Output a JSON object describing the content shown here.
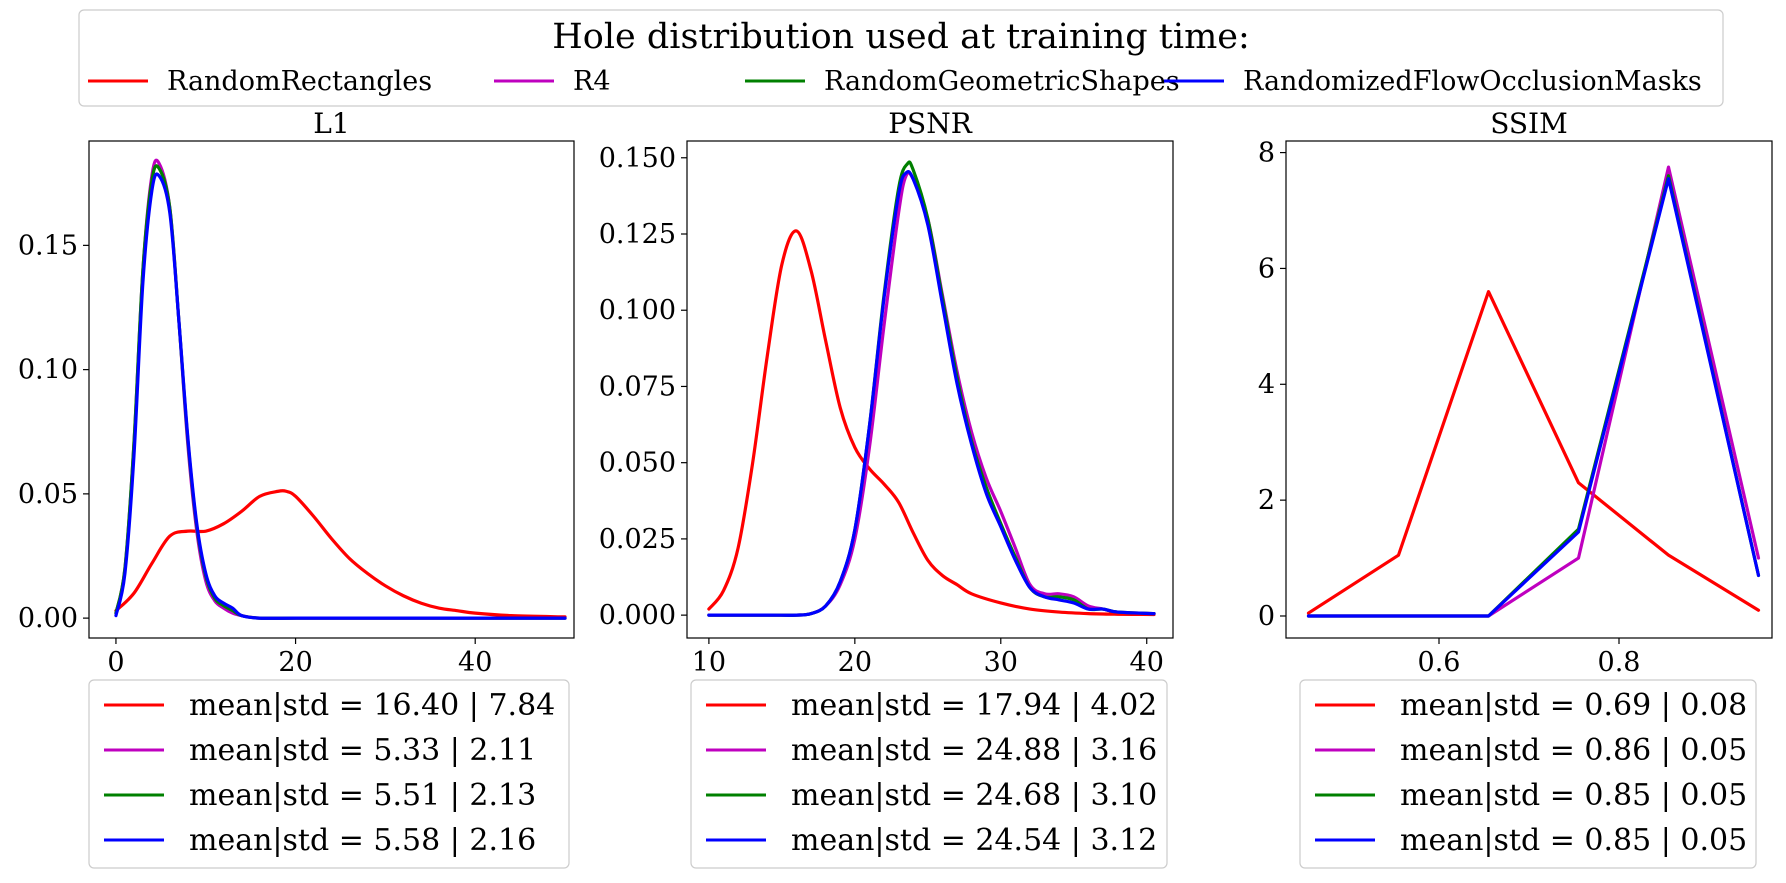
{
  "legend": {
    "title": "Hole distribution used at training time:",
    "entries": [
      {
        "label": "RandomRectangles",
        "color": "#ff0000"
      },
      {
        "label": "R4",
        "color": "#bf00bf"
      },
      {
        "label": "RandomGeometricShapes",
        "color": "#008000"
      },
      {
        "label": "RandomizedFlowOcclusionMasks",
        "color": "#0000ff"
      }
    ]
  },
  "chart_data": [
    {
      "type": "line",
      "title": "L1",
      "xlim": [
        -3,
        51
      ],
      "ylim": [
        -0.008,
        0.192
      ],
      "xticks": [
        0,
        20,
        40
      ],
      "xtick_labels": [
        "0",
        "20",
        "40"
      ],
      "yticks": [
        0,
        0.05,
        0.1,
        0.15
      ],
      "ytick_labels": [
        "0.00",
        "0.05",
        "0.10",
        "0.15"
      ],
      "series": [
        {
          "name": "RandomRectangles",
          "color": "#ff0000",
          "x": [
            0,
            2,
            4,
            6,
            8,
            10,
            12,
            14,
            16,
            18,
            19,
            20,
            22,
            24,
            26,
            28,
            30,
            32,
            34,
            36,
            38,
            40,
            44,
            50
          ],
          "y": [
            0.003,
            0.01,
            0.022,
            0.033,
            0.035,
            0.035,
            0.038,
            0.043,
            0.049,
            0.051,
            0.051,
            0.049,
            0.041,
            0.032,
            0.024,
            0.018,
            0.013,
            0.009,
            0.006,
            0.004,
            0.003,
            0.002,
            0.001,
            0.0005
          ]
        },
        {
          "name": "R4",
          "color": "#bf00bf",
          "x": [
            0,
            1,
            2,
            3,
            4,
            4.8,
            6,
            7,
            8,
            9,
            10,
            11,
            12,
            13,
            14,
            16,
            20,
            30,
            40,
            50
          ],
          "y": [
            0.002,
            0.02,
            0.07,
            0.14,
            0.178,
            0.183,
            0.165,
            0.12,
            0.07,
            0.035,
            0.015,
            0.007,
            0.004,
            0.002,
            0.001,
            0,
            0,
            0,
            0,
            0
          ]
        },
        {
          "name": "RandomGeometricShapes",
          "color": "#008000",
          "x": [
            0,
            1,
            2,
            3,
            4,
            4.8,
            6,
            7,
            8,
            9,
            10,
            11,
            12,
            13,
            14,
            16,
            20,
            30,
            40,
            50
          ],
          "y": [
            0.002,
            0.02,
            0.07,
            0.14,
            0.176,
            0.181,
            0.165,
            0.12,
            0.072,
            0.037,
            0.017,
            0.008,
            0.005,
            0.003,
            0.001,
            0,
            0,
            0,
            0,
            0
          ]
        },
        {
          "name": "RandomizedFlowOcclusionMasks",
          "color": "#0000ff",
          "x": [
            0,
            1,
            2,
            3,
            4,
            4.8,
            6,
            7,
            8,
            9,
            10,
            11,
            12,
            13,
            14,
            16,
            20,
            30,
            40,
            50
          ],
          "y": [
            0.001,
            0.018,
            0.065,
            0.135,
            0.172,
            0.178,
            0.163,
            0.12,
            0.073,
            0.038,
            0.018,
            0.009,
            0.006,
            0.004,
            0.001,
            0,
            0,
            0,
            0,
            0
          ]
        }
      ],
      "legend_stats": [
        "mean|std = 16.40 | 7.84",
        "mean|std = 5.33 | 2.11",
        "mean|std = 5.51 | 2.13",
        "mean|std = 5.58 | 2.16"
      ]
    },
    {
      "type": "line",
      "title": "PSNR",
      "xlim": [
        8.5,
        41.8
      ],
      "ylim": [
        -0.0075,
        0.1555
      ],
      "xticks": [
        10,
        20,
        30,
        40
      ],
      "xtick_labels": [
        "10",
        "20",
        "30",
        "40"
      ],
      "yticks": [
        0,
        0.025,
        0.05,
        0.075,
        0.1,
        0.125,
        0.15
      ],
      "ytick_labels": [
        "0.000",
        "0.025",
        "0.050",
        "0.075",
        "0.100",
        "0.125",
        "0.150"
      ],
      "series": [
        {
          "name": "RandomRectangles",
          "color": "#ff0000",
          "x": [
            10,
            11,
            12,
            13,
            14,
            15,
            16,
            17,
            18,
            19,
            20,
            21,
            22,
            23,
            24,
            25,
            26,
            27,
            28,
            30,
            32,
            34,
            36,
            38,
            40.5
          ],
          "y": [
            0.002,
            0.008,
            0.022,
            0.05,
            0.085,
            0.115,
            0.126,
            0.113,
            0.09,
            0.068,
            0.055,
            0.048,
            0.043,
            0.037,
            0.027,
            0.018,
            0.013,
            0.01,
            0.007,
            0.004,
            0.002,
            0.001,
            0.0005,
            0.0003,
            0.0002
          ]
        },
        {
          "name": "R4",
          "color": "#bf00bf",
          "x": [
            10,
            14,
            16,
            17,
            18,
            19,
            20,
            21,
            22,
            23,
            23.5,
            24,
            25,
            26,
            27,
            28,
            29,
            30,
            31,
            32,
            33,
            34,
            35,
            36,
            37,
            38,
            40.5
          ],
          "y": [
            0,
            0,
            0,
            0.0005,
            0.003,
            0.01,
            0.025,
            0.055,
            0.095,
            0.132,
            0.144,
            0.143,
            0.13,
            0.105,
            0.08,
            0.06,
            0.045,
            0.034,
            0.022,
            0.01,
            0.007,
            0.007,
            0.006,
            0.003,
            0.002,
            0.001,
            0.0005
          ]
        },
        {
          "name": "RandomGeometricShapes",
          "color": "#008000",
          "x": [
            10,
            14,
            16,
            17,
            18,
            19,
            20,
            21,
            22,
            23,
            23.6,
            24,
            25,
            26,
            27,
            28,
            29,
            30,
            31,
            32,
            33,
            34,
            35,
            36,
            37,
            38,
            40.5
          ],
          "y": [
            0,
            0,
            0,
            0.0005,
            0.003,
            0.011,
            0.028,
            0.062,
            0.105,
            0.14,
            0.148,
            0.146,
            0.13,
            0.104,
            0.078,
            0.057,
            0.042,
            0.03,
            0.019,
            0.009,
            0.006,
            0.006,
            0.005,
            0.002,
            0.002,
            0.001,
            0.0005
          ]
        },
        {
          "name": "RandomizedFlowOcclusionMasks",
          "color": "#0000ff",
          "x": [
            10,
            14,
            16,
            17,
            18,
            19,
            20,
            21,
            22,
            23,
            23.5,
            24,
            25,
            26,
            27,
            28,
            29,
            30,
            31,
            32,
            33,
            34,
            35,
            36,
            37,
            38,
            40.5
          ],
          "y": [
            0,
            0,
            0,
            0.0005,
            0.003,
            0.011,
            0.028,
            0.062,
            0.104,
            0.138,
            0.145,
            0.143,
            0.128,
            0.102,
            0.076,
            0.056,
            0.04,
            0.029,
            0.018,
            0.009,
            0.006,
            0.005,
            0.004,
            0.002,
            0.002,
            0.001,
            0.0005
          ]
        }
      ],
      "legend_stats": [
        "mean|std = 17.94 | 4.02",
        "mean|std = 24.88 | 3.16",
        "mean|std = 24.68 | 3.10",
        "mean|std = 24.54 | 3.12"
      ]
    },
    {
      "type": "line",
      "title": "SSIM",
      "xlim": [
        0.43,
        0.97
      ],
      "ylim": [
        -0.38,
        8.2
      ],
      "xticks": [
        0.6,
        0.8
      ],
      "xtick_labels": [
        "0.6",
        "0.8"
      ],
      "yticks": [
        0,
        2,
        4,
        6,
        8
      ],
      "ytick_labels": [
        "0",
        "2",
        "4",
        "6",
        "8"
      ],
      "series": [
        {
          "name": "RandomRectangles",
          "color": "#ff0000",
          "x": [
            0.455,
            0.555,
            0.655,
            0.755,
            0.855,
            0.955
          ],
          "y": [
            0.05,
            1.05,
            5.6,
            2.3,
            1.05,
            0.1
          ]
        },
        {
          "name": "R4",
          "color": "#bf00bf",
          "x": [
            0.455,
            0.555,
            0.655,
            0.755,
            0.855,
            0.955
          ],
          "y": [
            0,
            0,
            0,
            1.0,
            7.75,
            1.0
          ]
        },
        {
          "name": "RandomGeometricShapes",
          "color": "#008000",
          "x": [
            0.455,
            0.555,
            0.655,
            0.755,
            0.855,
            0.955
          ],
          "y": [
            0,
            0,
            0,
            1.5,
            7.6,
            0.7
          ]
        },
        {
          "name": "RandomizedFlowOcclusionMasks",
          "color": "#0000ff",
          "x": [
            0.455,
            0.555,
            0.655,
            0.755,
            0.855,
            0.955
          ],
          "y": [
            0,
            0,
            0,
            1.45,
            7.55,
            0.7
          ]
        }
      ],
      "legend_stats": [
        "mean|std = 0.69 | 0.08",
        "mean|std = 0.86 | 0.05",
        "mean|std = 0.85 | 0.05",
        "mean|std = 0.85 | 0.05"
      ]
    }
  ]
}
